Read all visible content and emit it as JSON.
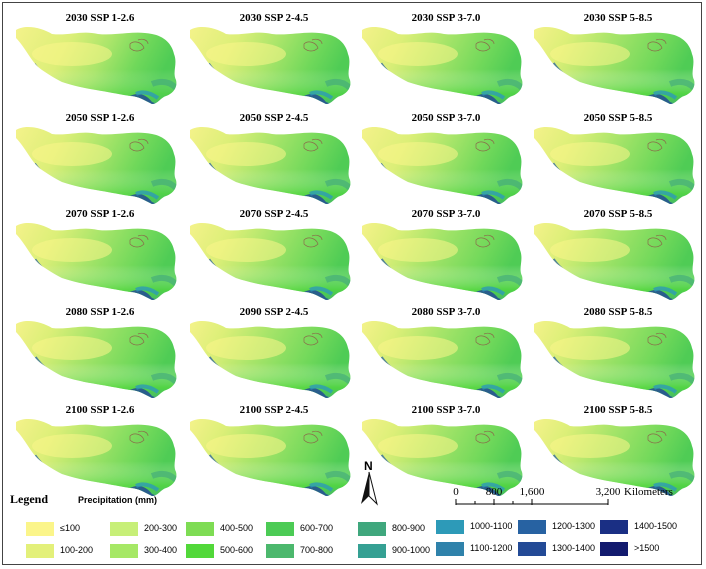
{
  "panels": [
    {
      "title": "2030 SSP 1-2.6",
      "variant": 0
    },
    {
      "title": "2030 SSP 2-4.5",
      "variant": 1
    },
    {
      "title": "2030 SSP 3-7.0",
      "variant": 2
    },
    {
      "title": "2030 SSP 5-8.5",
      "variant": 3
    },
    {
      "title": "2050 SSP 1-2.6",
      "variant": 1
    },
    {
      "title": "2050 SSP 2-4.5",
      "variant": 2
    },
    {
      "title": "2050 SSP 3-7.0",
      "variant": 1
    },
    {
      "title": "2050 SSP 5-8.5",
      "variant": 2
    },
    {
      "title": "2070 SSP 1-2.6",
      "variant": 2
    },
    {
      "title": "2070 SSP 2-4.5",
      "variant": 2
    },
    {
      "title": "2070 SSP 3-7.0",
      "variant": 3
    },
    {
      "title": "2070 SSP 5-8.5",
      "variant": 3
    },
    {
      "title": "2080 SSP 1-2.6",
      "variant": 3
    },
    {
      "title": "2090 SSP 2-4.5",
      "variant": 3
    },
    {
      "title": "2080 SSP 3-7.0",
      "variant": 3
    },
    {
      "title": "2080 SSP 5-8.5",
      "variant": 3
    },
    {
      "title": "2100 SSP 1-2.6",
      "variant": 2
    },
    {
      "title": "2100 SSP 2-4.5",
      "variant": 3
    },
    {
      "title": "2100 SSP 3-7.0",
      "variant": 3
    },
    {
      "title": "2100 SSP 5-8.5",
      "variant": 3
    }
  ],
  "legend": {
    "title": "Legend",
    "subtitle": "Precipitation (mm)",
    "classes": [
      {
        "label": "≤100",
        "color": "#fbf58a"
      },
      {
        "label": "100-200",
        "color": "#e3f07a"
      },
      {
        "label": "200-300",
        "color": "#c7ef78"
      },
      {
        "label": "300-400",
        "color": "#a6e866"
      },
      {
        "label": "400-500",
        "color": "#7edc54"
      },
      {
        "label": "500-600",
        "color": "#52d83a"
      },
      {
        "label": "600-700",
        "color": "#4ccb55"
      },
      {
        "label": "700-800",
        "color": "#4cb86d"
      },
      {
        "label": "800-900",
        "color": "#3fa77d"
      },
      {
        "label": "900-1000",
        "color": "#35a093"
      },
      {
        "label": "1000-1100",
        "color": "#2d9ab8"
      },
      {
        "label": "1100-1200",
        "color": "#2f82ab"
      },
      {
        "label": "1200-1300",
        "color": "#2762a2"
      },
      {
        "label": "1300-1400",
        "color": "#234a96"
      },
      {
        "label": "1400-1500",
        "color": "#1a2f84"
      },
      {
        "label": ">1500",
        "color": "#121a6e"
      }
    ]
  },
  "north_arrow": {
    "label": "N"
  },
  "scale_bar": {
    "ticks": [
      "0",
      "800",
      "1,600",
      "3,200"
    ],
    "tick_values": [
      0,
      800,
      1600,
      3200
    ],
    "unit": "Kilometers"
  }
}
